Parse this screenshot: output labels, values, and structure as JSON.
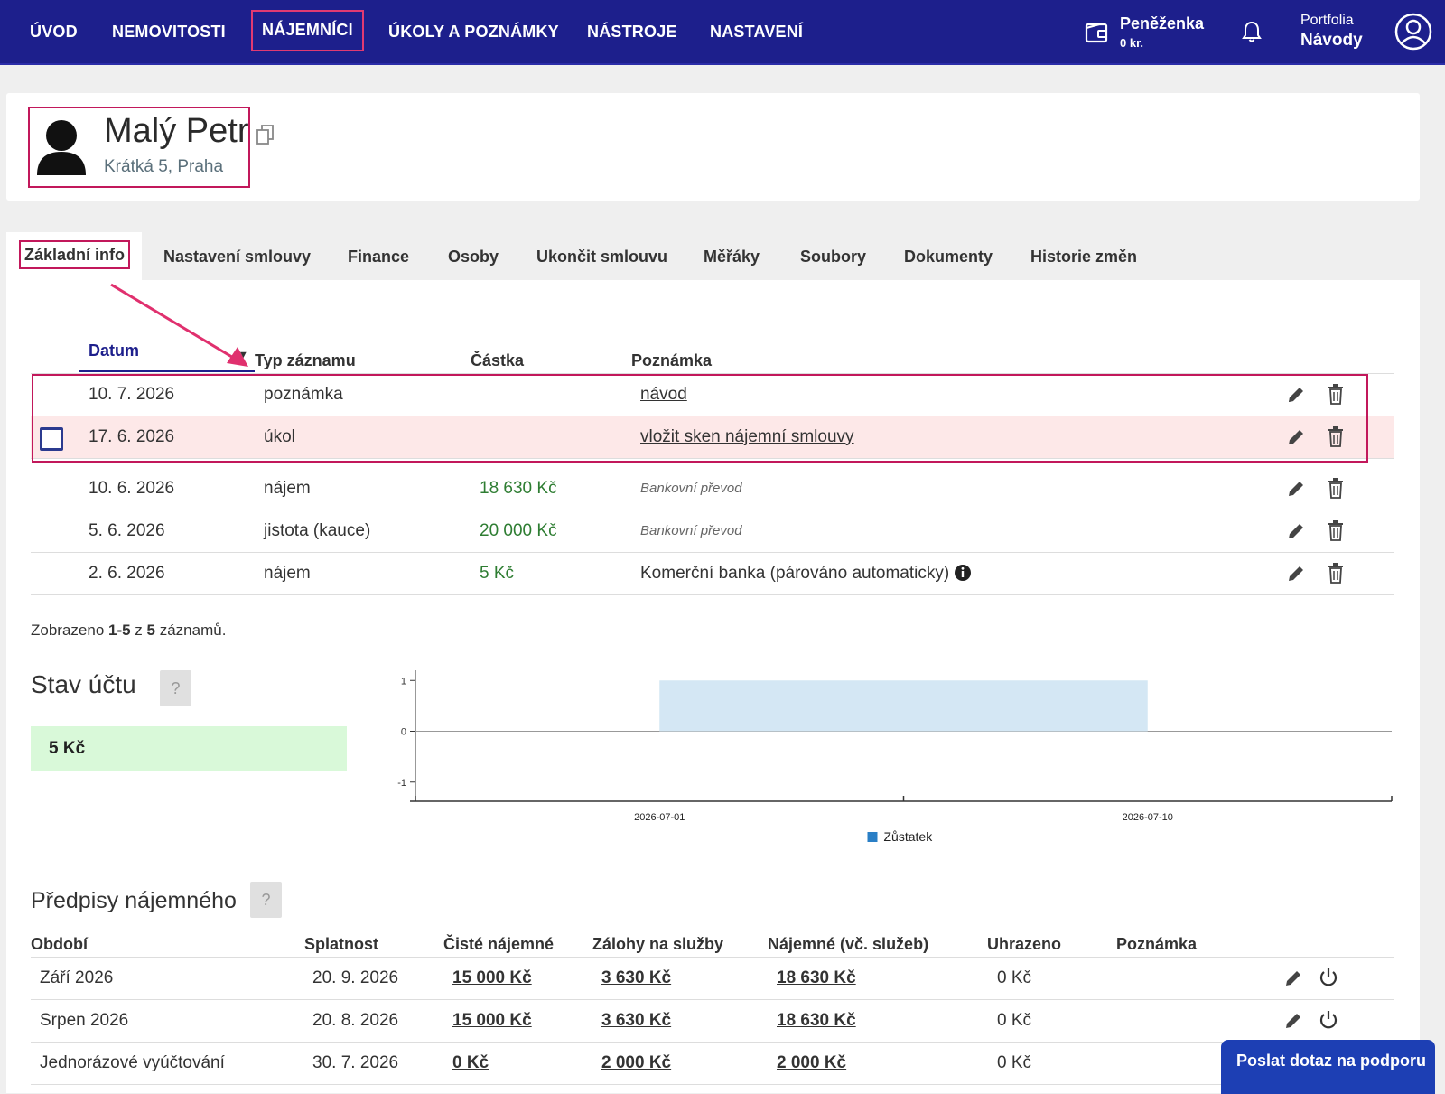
{
  "nav": {
    "items": [
      {
        "label": "ÚVOD"
      },
      {
        "label": "NEMOVITOSTI"
      },
      {
        "label": "NÁJEMNÍCI"
      },
      {
        "label": "ÚKOLY A POZNÁMKY"
      },
      {
        "label": "NÁSTROJE"
      },
      {
        "label": "NASTAVENÍ"
      }
    ],
    "active": "NÁJEMNÍCI",
    "wallet": {
      "title": "Peněženka",
      "amount": "0 kr."
    },
    "portfolio": {
      "label": "Portfolia",
      "value": "Návody"
    }
  },
  "tenant": {
    "name": "Malý Petr",
    "address": "Krátká 5, Praha"
  },
  "tabs": [
    {
      "label": "Základní info"
    },
    {
      "label": "Nastavení smlouvy"
    },
    {
      "label": "Finance"
    },
    {
      "label": "Osoby"
    },
    {
      "label": "Ukončit smlouvu"
    },
    {
      "label": "Měřáky"
    },
    {
      "label": "Soubory"
    },
    {
      "label": "Dokumenty"
    },
    {
      "label": "Historie změn"
    }
  ],
  "records": {
    "headers": {
      "date": "Datum",
      "type": "Typ záznamu",
      "amount": "Částka",
      "note": "Poznámka"
    },
    "rows": [
      {
        "date": "10. 7. 2026",
        "type": "poznámka",
        "amount": "",
        "note": "návod"
      },
      {
        "date": "17. 6. 2026",
        "type": "úkol",
        "amount": "",
        "note": "vložit sken nájemní smlouvy"
      },
      {
        "date": "10. 6. 2026",
        "type": "nájem",
        "amount": "18 630 Kč",
        "note": "Bankovní převod"
      },
      {
        "date": "5. 6. 2026",
        "type": "jistota (kauce)",
        "amount": "20 000 Kč",
        "note": "Bankovní převod"
      },
      {
        "date": "2. 6. 2026",
        "type": "nájem",
        "amount": "5 Kč",
        "note": "Komerční banka (párováno automaticky)"
      }
    ],
    "paging": {
      "prefix": "Zobrazeno ",
      "range": "1-5",
      "mid": " z ",
      "total": "5",
      "suffix": " záznamů."
    }
  },
  "account": {
    "title": "Stav účtu",
    "help": "?",
    "balance": "5 Kč"
  },
  "chart_data": {
    "type": "area",
    "series": [
      {
        "name": "Zůstatek",
        "x": [
          "2026-07-01",
          "2026-07-10"
        ],
        "values": [
          1,
          1
        ],
        "color": "#d4e7f4",
        "legend_color": "#2a7fc6"
      }
    ],
    "x_ticks": [
      "2026-07-01",
      "2026-07-10"
    ],
    "y_ticks": [
      "1",
      "0",
      "-1"
    ],
    "ylim": [
      -1.2,
      1.2
    ],
    "legend_position": "bottom-center"
  },
  "rent": {
    "title": "Předpisy nájemného",
    "help": "?",
    "headers": {
      "period": "Období",
      "due": "Splatnost",
      "net": "Čisté nájemné",
      "advances": "Zálohy na služby",
      "total": "Nájemné (vč. služeb)",
      "paid": "Uhrazeno",
      "note": "Poznámka"
    },
    "rows": [
      {
        "period": "Září 2026",
        "due": "20. 9. 2026",
        "net": "15 000 Kč",
        "advances": "3 630 Kč",
        "total": "18 630 Kč",
        "paid": "0 Kč"
      },
      {
        "period": "Srpen 2026",
        "due": "20. 8. 2026",
        "net": "15 000 Kč",
        "advances": "3 630 Kč",
        "total": "18 630 Kč",
        "paid": "0 Kč"
      },
      {
        "period": "Jednorázové vyúčtování",
        "due": "30. 7. 2026",
        "net": "0 Kč",
        "advances": "2 000 Kč",
        "total": "2 000 Kč",
        "paid": "0 Kč"
      }
    ]
  },
  "support": {
    "label": "Poslat dotaz na podporu"
  },
  "colors": {
    "nav_bg": "#1d1f8c",
    "highlight": "#c2185b",
    "amount_green": "#2e7d32",
    "task_row": "#fde8e8",
    "balance_bg": "#d9f9d9"
  }
}
